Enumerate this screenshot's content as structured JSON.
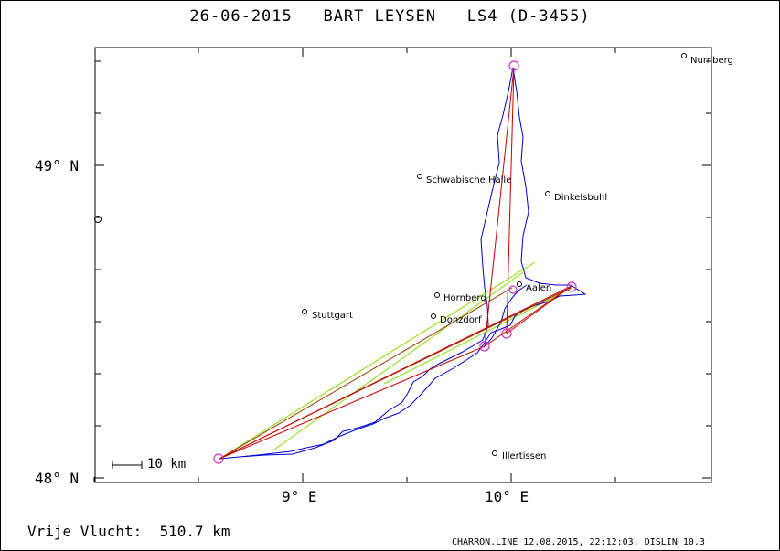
{
  "title": "26-06-2015   BART LEYSEN   LS4 (D-3455)",
  "axes": {
    "latitude_labels": [
      "49° N",
      "48° N"
    ],
    "longitude_labels": [
      "9° E",
      "10° E"
    ]
  },
  "places": [
    {
      "name": "Nurnberg"
    },
    {
      "name": "Schwabische Halle"
    },
    {
      "name": "Dinkelsbuhl"
    },
    {
      "name": "Hornberg"
    },
    {
      "name": "Aalen"
    },
    {
      "name": "Stuttgart"
    },
    {
      "name": "Donzdorf"
    },
    {
      "name": "Illertissen"
    }
  ],
  "scale_bar": {
    "label": "10 km"
  },
  "free_flight": "Vrije Vlucht:  510.7 km",
  "credits": "CHARRON.LINE 12.08.2015, 22:12:03, DISLIN 10.3",
  "colors": {
    "track": "#0000cc",
    "task_legs": "#cc0000",
    "diagonals": "#88dd00",
    "brown_legs": "#993300",
    "turnpoints": "#cc33cc"
  }
}
